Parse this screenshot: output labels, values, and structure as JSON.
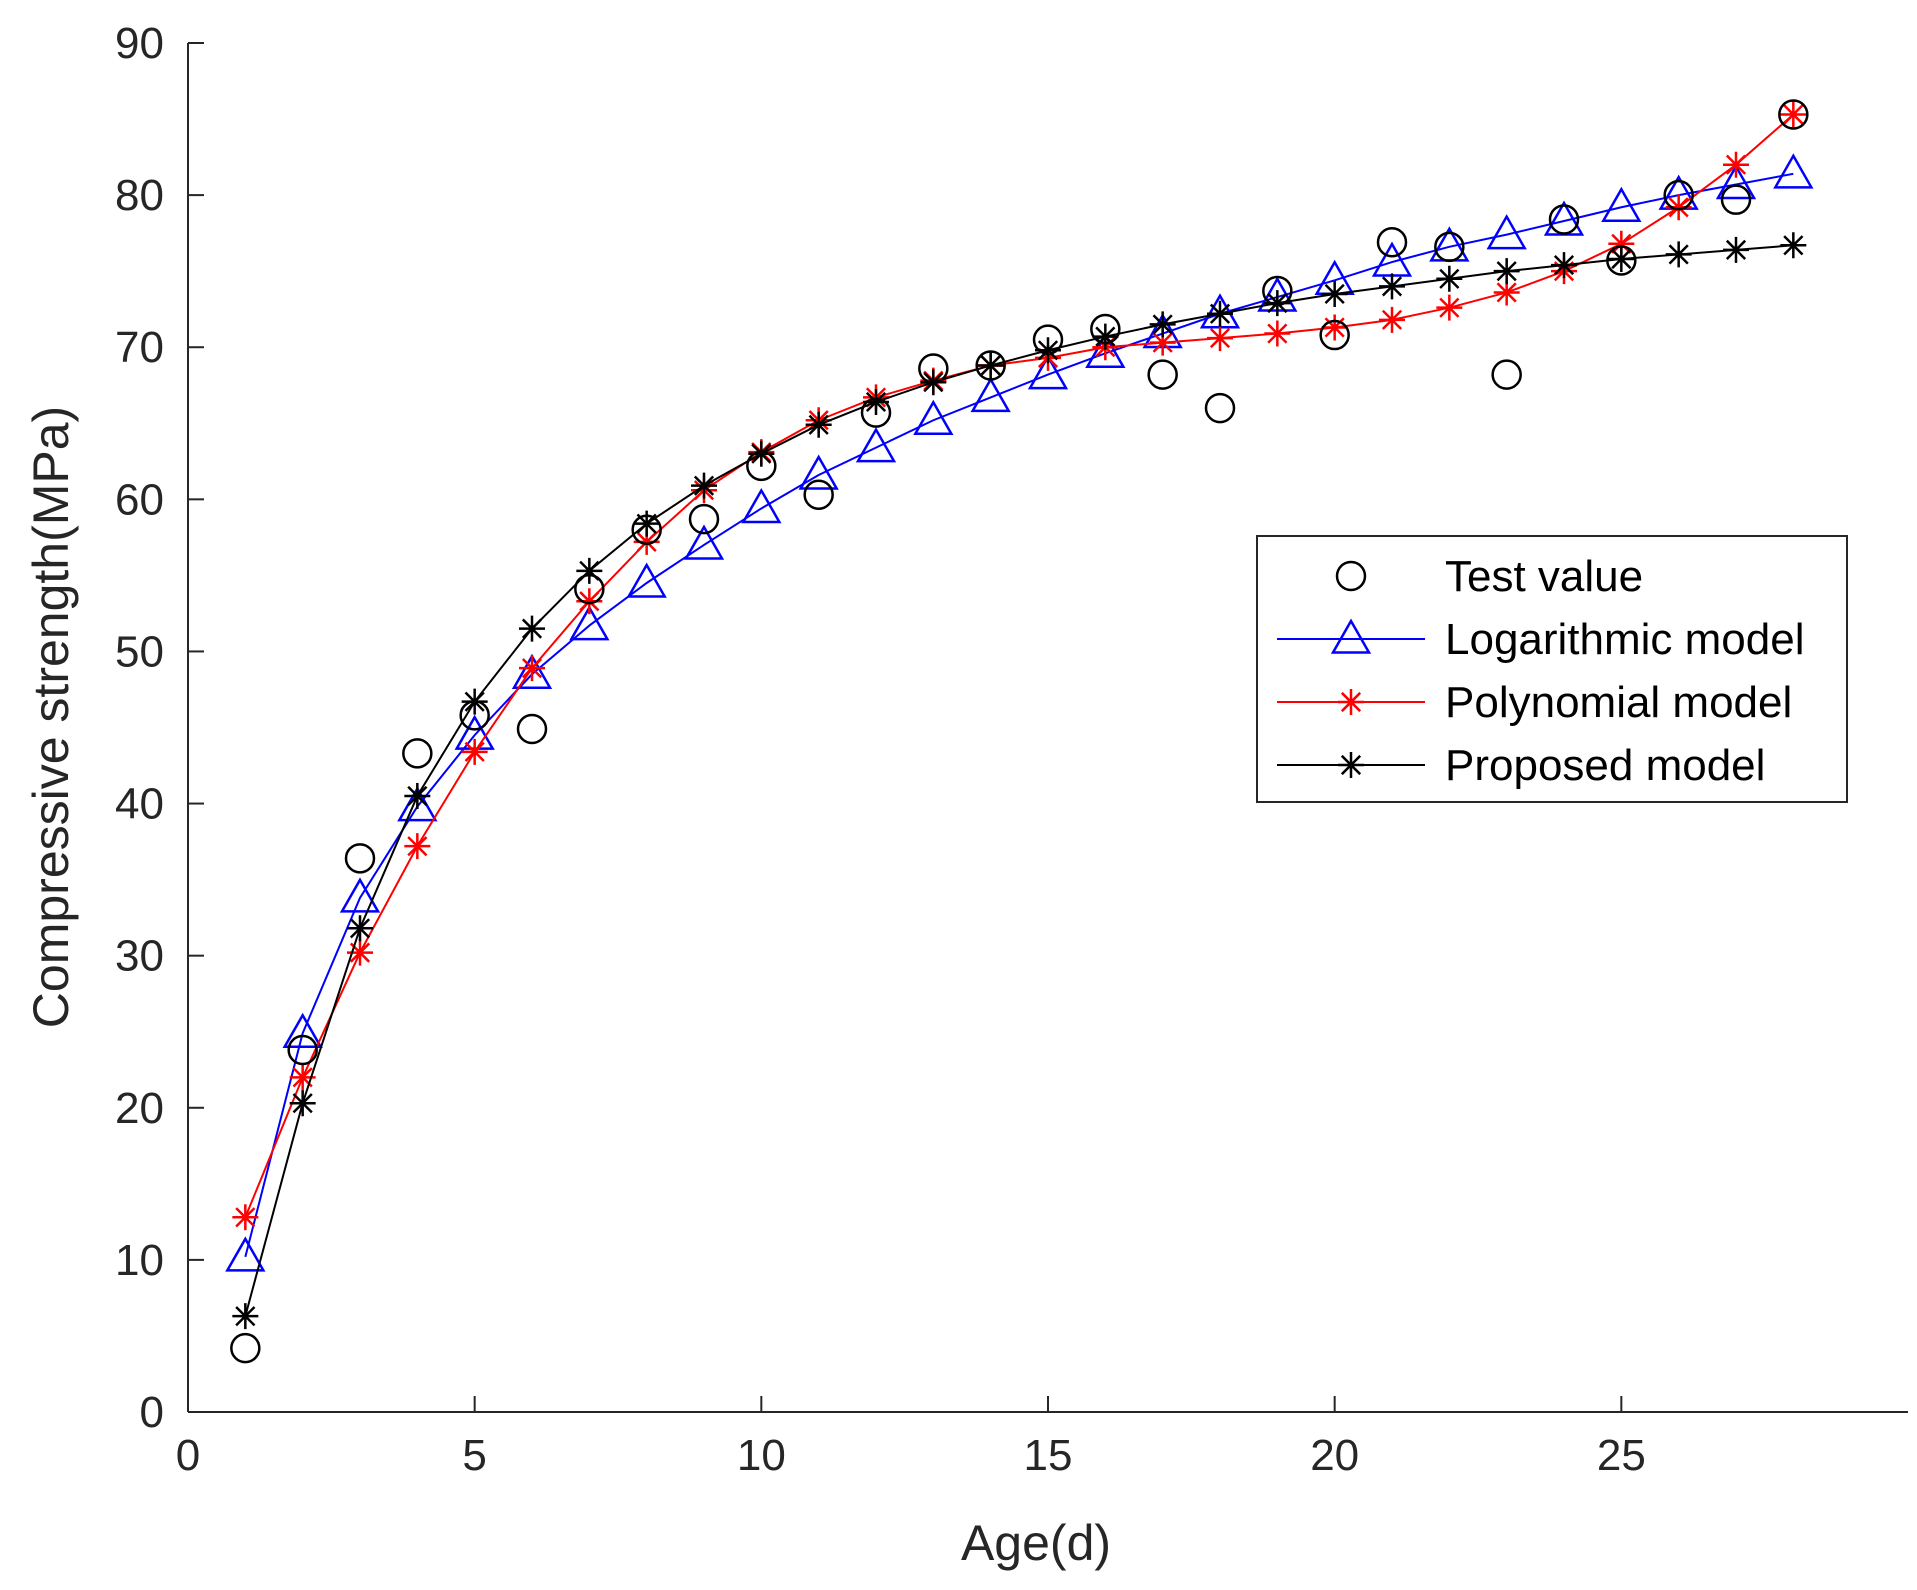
{
  "chart_data": {
    "type": "line",
    "title": "",
    "xlabel": "Age(d)",
    "ylabel": "Compressive strength(MPa)",
    "xlim": [
      0,
      30
    ],
    "ylim": [
      0,
      90
    ],
    "xticks": [
      0,
      5,
      10,
      15,
      20,
      25
    ],
    "yticks": [
      0,
      10,
      20,
      30,
      40,
      50,
      60,
      70,
      80,
      90
    ],
    "grid": false,
    "legend_position": "center-right",
    "series": [
      {
        "name": "Test value",
        "marker": "circle",
        "line": false,
        "color": "#000000",
        "x": [
          1,
          2,
          3,
          4,
          5,
          6,
          7,
          8,
          9,
          10,
          11,
          12,
          13,
          14,
          15,
          16,
          17,
          18,
          19,
          20,
          21,
          22,
          23,
          24,
          25,
          26,
          27,
          28
        ],
        "values": [
          4.2,
          23.8,
          36.4,
          43.3,
          45.8,
          44.9,
          54.1,
          58.0,
          58.7,
          62.2,
          60.3,
          65.7,
          68.6,
          68.8,
          70.5,
          71.2,
          68.2,
          66.0,
          73.7,
          70.8,
          76.9,
          76.6,
          68.2,
          78.4,
          75.7,
          80.0,
          79.7,
          85.3
        ]
      },
      {
        "name": "Logarithmic model",
        "marker": "triangle",
        "line": true,
        "color": "#0000ff",
        "x": [
          1,
          2,
          3,
          4,
          5,
          6,
          7,
          8,
          9,
          10,
          11,
          12,
          13,
          14,
          15,
          16,
          17,
          18,
          19,
          20,
          21,
          22,
          23,
          24,
          25,
          26,
          27,
          28
        ],
        "values": [
          10.2,
          24.9,
          33.8,
          39.8,
          44.5,
          48.5,
          51.7,
          54.5,
          57.0,
          59.4,
          61.6,
          63.4,
          65.2,
          66.7,
          68.2,
          69.6,
          70.9,
          72.2,
          73.3,
          74.4,
          75.6,
          76.6,
          77.4,
          78.3,
          79.2,
          80.0,
          80.7,
          81.4
        ]
      },
      {
        "name": "Polynomial model",
        "marker": "asterisk",
        "line": true,
        "color": "#ff0000",
        "x": [
          1,
          2,
          3,
          4,
          5,
          6,
          7,
          8,
          9,
          10,
          11,
          12,
          13,
          14,
          15,
          16,
          17,
          18,
          19,
          20,
          21,
          22,
          23,
          24,
          25,
          26,
          27,
          28
        ],
        "values": [
          12.8,
          22.0,
          30.2,
          37.2,
          43.4,
          48.9,
          53.3,
          57.2,
          60.6,
          63.1,
          65.2,
          66.7,
          67.8,
          68.8,
          69.3,
          70.0,
          70.3,
          70.6,
          70.9,
          71.3,
          71.8,
          72.6,
          73.6,
          75.0,
          76.8,
          79.2,
          82.0,
          85.3
        ]
      },
      {
        "name": "Proposed model",
        "marker": "asterisk",
        "line": true,
        "color": "#000000",
        "x": [
          1,
          2,
          3,
          4,
          5,
          6,
          7,
          8,
          9,
          10,
          11,
          12,
          13,
          14,
          15,
          16,
          17,
          18,
          19,
          20,
          21,
          22,
          23,
          24,
          25,
          26,
          27,
          28
        ],
        "values": [
          6.3,
          20.3,
          31.8,
          40.5,
          46.7,
          51.5,
          55.3,
          58.4,
          60.9,
          63.0,
          64.9,
          66.4,
          67.7,
          68.8,
          69.8,
          70.7,
          71.5,
          72.2,
          72.9,
          73.5,
          74.0,
          74.5,
          75.0,
          75.4,
          75.8,
          76.1,
          76.4,
          76.7
        ]
      }
    ]
  }
}
